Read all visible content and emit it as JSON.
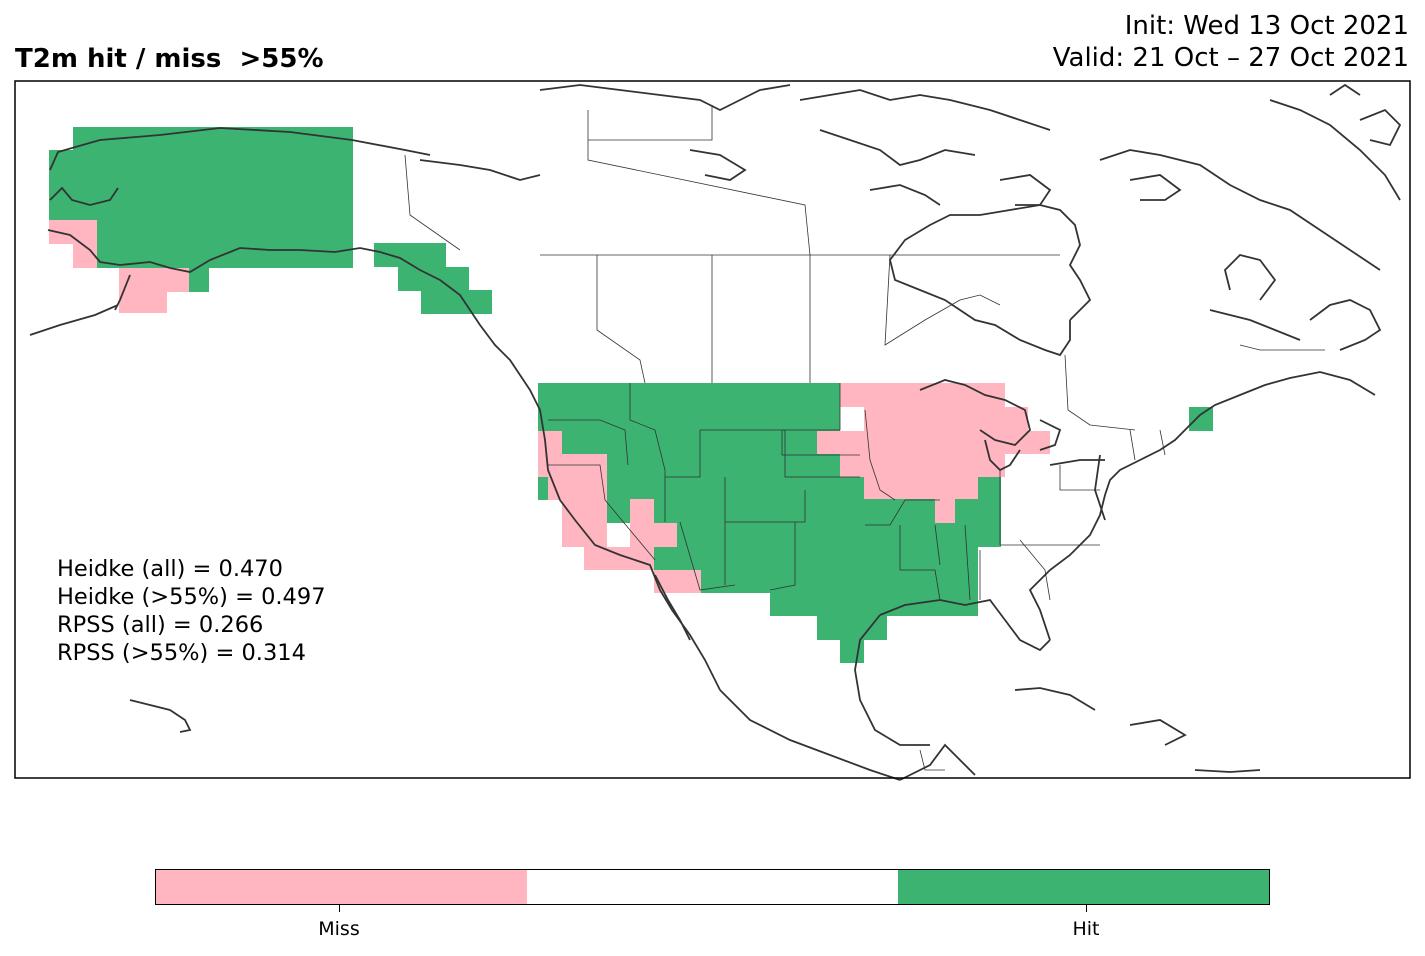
{
  "title": {
    "left": "T2m hit / miss  >55%",
    "init": "Init: Wed 13 Oct 2021",
    "valid": "Valid: 21 Oct – 27 Oct 2021"
  },
  "stats": {
    "heidke_all": "Heidke (all) = 0.470",
    "heidke_55": "Heidke (>55%) = 0.497",
    "rpss_all": "RPSS (all) = 0.266",
    "rpss_55": "RPSS (>55%) = 0.314"
  },
  "legend": {
    "miss_label": "Miss",
    "hit_label": "Hit",
    "colors": {
      "miss": "#ffb6c1",
      "neutral": "#ffffff",
      "hit": "#3cb371"
    }
  },
  "map": {
    "region": "North America",
    "variable": "T2m",
    "outcome_colors": {
      "hit": "#3cb371",
      "miss": "#ffb6c1"
    },
    "land_outline_color": "#333333"
  }
}
